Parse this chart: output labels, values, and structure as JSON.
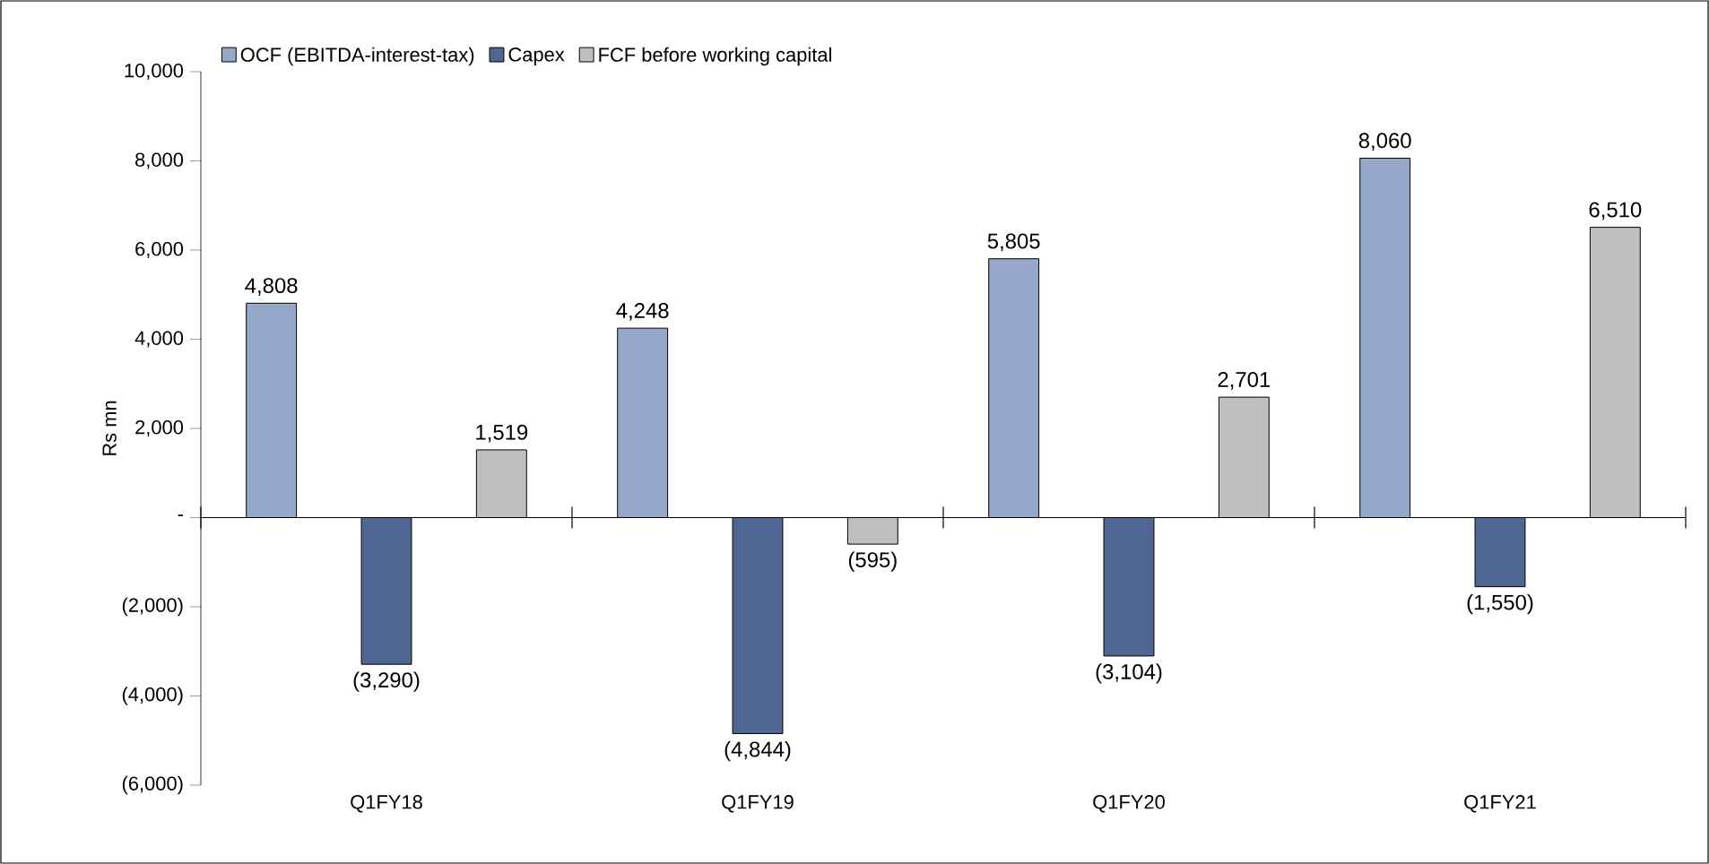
{
  "chart_data": {
    "type": "bar",
    "ylabel": "Rs mn",
    "categories": [
      "Q1FY18",
      "Q1FY19",
      "Q1FY20",
      "Q1FY21"
    ],
    "series": [
      {
        "name": "OCF (EBITDA-interest-tax)",
        "color": "#95a8c9",
        "values": [
          4808,
          4248,
          5805,
          8060
        ],
        "value_labels": [
          "4,808",
          "4,248",
          "5,805",
          "8,060"
        ]
      },
      {
        "name": "Capex",
        "color": "#4f6592",
        "values": [
          -3290,
          -4844,
          -3104,
          -1550
        ],
        "value_labels": [
          "(3,290)",
          "(4,844)",
          "(3,104)",
          "(1,550)"
        ]
      },
      {
        "name": "FCF before working capital",
        "color": "#bfbfbf",
        "values": [
          1519,
          -595,
          2701,
          6510
        ],
        "value_labels": [
          "1,519",
          "(595)",
          "2,701",
          "6,510"
        ]
      }
    ],
    "ylim": [
      -6000,
      10000
    ],
    "yticks": [
      {
        "value": -6000,
        "label": "(6,000)"
      },
      {
        "value": -4000,
        "label": "(4,000)"
      },
      {
        "value": -2000,
        "label": "(2,000)"
      },
      {
        "value": 0,
        "label": "-"
      },
      {
        "value": 2000,
        "label": "2,000"
      },
      {
        "value": 4000,
        "label": "4,000"
      },
      {
        "value": 6000,
        "label": "6,000"
      },
      {
        "value": 8000,
        "label": "8,000"
      },
      {
        "value": 10000,
        "label": "10,000"
      }
    ],
    "legend": "top left"
  }
}
